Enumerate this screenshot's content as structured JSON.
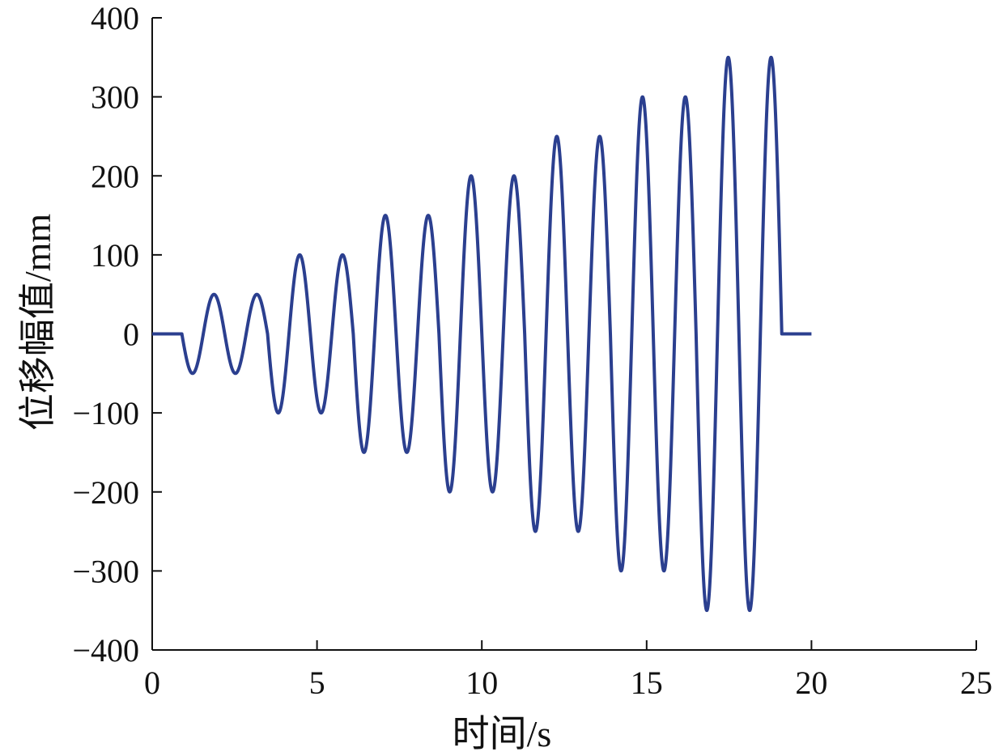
{
  "chart_data": {
    "type": "line",
    "xlabel": "时间/s",
    "ylabel": "位移幅值/mm",
    "xlim": [
      0,
      25
    ],
    "ylim": [
      -400,
      400
    ],
    "xticks": [
      0,
      5,
      10,
      15,
      20,
      25
    ],
    "yticks": [
      400,
      300,
      200,
      100,
      0,
      -100,
      -200,
      -300,
      -400
    ],
    "ytick_labels": [
      "400",
      "300",
      "200",
      "100",
      "0",
      "−100",
      "−200",
      "−300",
      "−400"
    ],
    "grid": false,
    "line_color": "#2b3f8f",
    "series": [
      {
        "signal": "stepwise increasing sinusoid, two cycles per amplitude level",
        "start_zero_until": 0.9,
        "period": 1.3,
        "amplitudes": [
          50,
          50,
          100,
          100,
          150,
          150,
          200,
          200,
          250,
          250,
          300,
          300,
          350,
          350
        ],
        "end_time_of_oscillation": 19.1,
        "end_zero_until": 20,
        "x": [
          0,
          0.9,
          1.225,
          1.875,
          2.525,
          3.175,
          3.825,
          4.475,
          5.125,
          5.775,
          6.425,
          7.075,
          7.725,
          8.375,
          9.025,
          9.675,
          10.325,
          10.975,
          11.625,
          12.275,
          12.925,
          13.575,
          14.225,
          14.875,
          15.525,
          16.175,
          16.825,
          17.475,
          18.125,
          18.775,
          19.1,
          20
        ],
        "y": [
          0,
          0,
          -50,
          50,
          -50,
          50,
          -100,
          100,
          -100,
          100,
          -150,
          150,
          -150,
          150,
          -200,
          200,
          -200,
          200,
          -250,
          250,
          -250,
          250,
          -300,
          300,
          -300,
          300,
          -350,
          350,
          -350,
          350,
          0,
          0
        ]
      }
    ]
  }
}
